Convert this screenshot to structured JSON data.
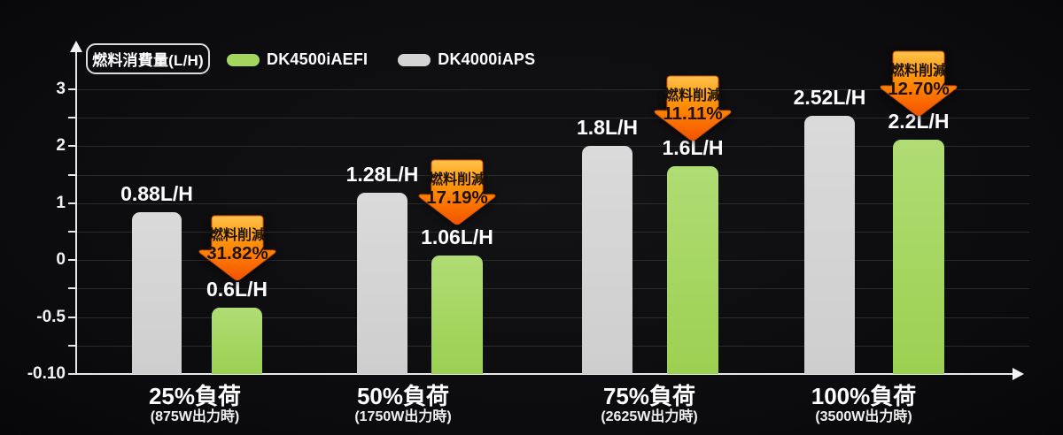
{
  "chart_data": {
    "type": "bar",
    "title": "燃料消費量(L/H)",
    "ylabel": "燃料消費量(L/H)",
    "xlabel": "",
    "grid": true,
    "legend_position": "top",
    "y_axis_tick_labels_as_shown": [
      "3",
      "2",
      "1",
      "0",
      "-0.5",
      "-0.10"
    ],
    "categories": [
      "25%負荷",
      "50%負荷",
      "75%負荷",
      "100%負荷"
    ],
    "category_sublabels": [
      "(875W出力時)",
      "(1750W出力時)",
      "(2625W出力時)",
      "(3500W出力時)"
    ],
    "series": [
      {
        "name": "DK4000iAPS",
        "color": "#d4d4d4",
        "values": [
          0.88,
          1.28,
          1.8,
          2.52
        ],
        "value_labels": [
          "0.88L/H",
          "1.28L/H",
          "1.8L/H",
          "2.52L/H"
        ]
      },
      {
        "name": "DK4500iAEFI",
        "color": "#a4d65e",
        "values": [
          0.6,
          1.06,
          1.6,
          2.2
        ],
        "value_labels": [
          "0.6L/H",
          "1.06L/H",
          "1.6L/H",
          "2.2L/H"
        ]
      }
    ],
    "annotations": {
      "label": "燃料削減",
      "reduction_percents": [
        "31.82%",
        "17.19%",
        "11.11%",
        "12.70%"
      ],
      "arrow_color_top": "#ffc14f",
      "arrow_color_bottom": "#f25300"
    },
    "display": {
      "baseline_y": 423,
      "grid_top_y": 101,
      "grid_step": 32.2,
      "grid_positions": 11,
      "groups": [
        {
          "gray": {
            "x": 149,
            "w": 56,
            "top": 240
          },
          "green": {
            "x": 239,
            "w": 57,
            "top": 348
          },
          "arrow_top": 241,
          "label_cx": 220
        },
        {
          "gray": {
            "x": 403,
            "w": 57,
            "top": 218
          },
          "green": {
            "x": 487,
            "w": 58,
            "top": 289
          },
          "arrow_top": 178,
          "label_cx": 455
        },
        {
          "gray": {
            "x": 657,
            "w": 57,
            "top": 165
          },
          "green": {
            "x": 753,
            "w": 58,
            "top": 188
          },
          "arrow_top": 83,
          "label_cx": 733
        },
        {
          "gray": {
            "x": 908,
            "w": 57,
            "top": 131
          },
          "green": {
            "x": 1008,
            "w": 58,
            "top": 158
          },
          "arrow_top": 55,
          "label_cx": 975
        }
      ]
    }
  }
}
